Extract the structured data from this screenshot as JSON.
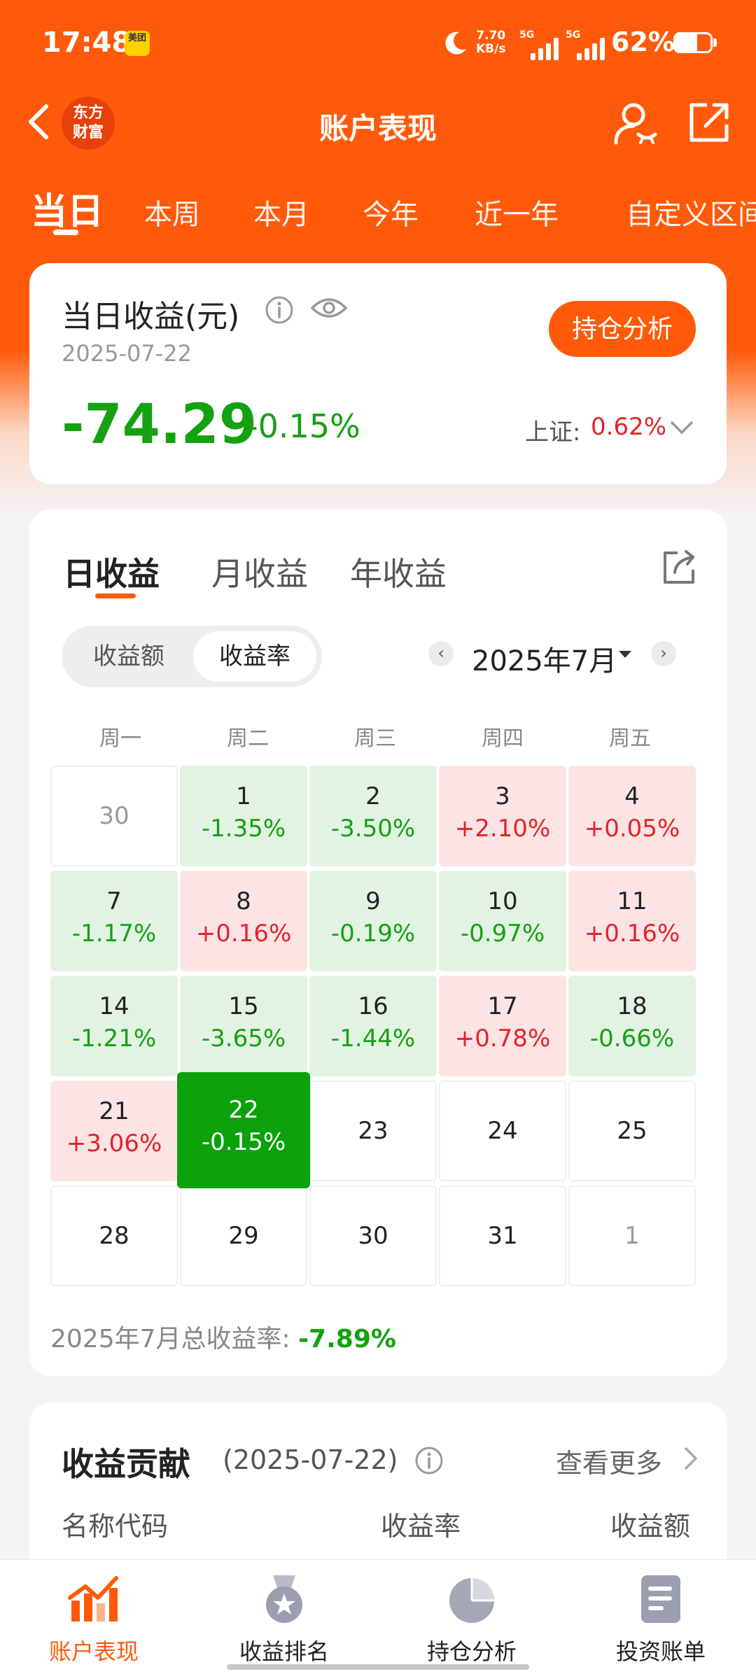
{
  "status": {
    "time": "17:48",
    "app_badge": "美团",
    "net_speed_value": "7.70",
    "net_speed_unit": "KB/s",
    "sim1_label": "5G",
    "sim2_label": "5G",
    "battery_percent": "62%",
    "battery_level": 0.62
  },
  "nav": {
    "logo_line1": "东方",
    "logo_line2": "财富",
    "title": "账户表现"
  },
  "period_tabs": [
    {
      "label": "当日",
      "active": true
    },
    {
      "label": "本周"
    },
    {
      "label": "本月"
    },
    {
      "label": "今年"
    },
    {
      "label": "近一年"
    },
    {
      "label": "自定义区间"
    }
  ],
  "summary": {
    "title": "当日收益(元)",
    "date": "2025-07-22",
    "amount": "-74.29",
    "rate": "-0.15%",
    "holdings_button": "持仓分析",
    "index_label": "上证:",
    "index_value": "0.62%"
  },
  "calendar": {
    "view_tabs": [
      {
        "label": "日收益",
        "active": true
      },
      {
        "label": "月收益"
      },
      {
        "label": "年收益"
      }
    ],
    "toggle": [
      {
        "label": "收益额"
      },
      {
        "label": "收益率",
        "active": true
      }
    ],
    "month": "2025年7月",
    "weekdays": [
      "周一",
      "周二",
      "周三",
      "周四",
      "周五"
    ],
    "days": [
      {
        "day": "30",
        "rate": "",
        "state": "other"
      },
      {
        "day": "1",
        "rate": "-1.35%",
        "state": "down"
      },
      {
        "day": "2",
        "rate": "-3.50%",
        "state": "down"
      },
      {
        "day": "3",
        "rate": "+2.10%",
        "state": "up"
      },
      {
        "day": "4",
        "rate": "+0.05%",
        "state": "up"
      },
      {
        "day": "7",
        "rate": "-1.17%",
        "state": "down"
      },
      {
        "day": "8",
        "rate": "+0.16%",
        "state": "up"
      },
      {
        "day": "9",
        "rate": "-0.19%",
        "state": "down"
      },
      {
        "day": "10",
        "rate": "-0.97%",
        "state": "down"
      },
      {
        "day": "11",
        "rate": "+0.16%",
        "state": "up"
      },
      {
        "day": "14",
        "rate": "-1.21%",
        "state": "down"
      },
      {
        "day": "15",
        "rate": "-3.65%",
        "state": "down"
      },
      {
        "day": "16",
        "rate": "-1.44%",
        "state": "down"
      },
      {
        "day": "17",
        "rate": "+0.78%",
        "state": "up"
      },
      {
        "day": "18",
        "rate": "-0.66%",
        "state": "down"
      },
      {
        "day": "21",
        "rate": "+3.06%",
        "state": "up"
      },
      {
        "day": "22",
        "rate": "-0.15%",
        "state": "selected"
      },
      {
        "day": "23",
        "rate": "",
        "state": "future"
      },
      {
        "day": "24",
        "rate": "",
        "state": "future"
      },
      {
        "day": "25",
        "rate": "",
        "state": "future"
      },
      {
        "day": "28",
        "rate": "",
        "state": "future"
      },
      {
        "day": "29",
        "rate": "",
        "state": "future"
      },
      {
        "day": "30",
        "rate": "",
        "state": "future"
      },
      {
        "day": "31",
        "rate": "",
        "state": "future"
      },
      {
        "day": "1",
        "rate": "",
        "state": "other"
      }
    ],
    "total_label": "2025年7月总收益率:",
    "total_value": "-7.89%"
  },
  "contribution": {
    "title": "收益贡献",
    "date": "(2025-07-22)",
    "see_more": "查看更多",
    "col_name": "名称代码",
    "col_rate": "收益率",
    "col_amount": "收益额"
  },
  "bottom_nav": [
    {
      "label": "账户表现",
      "icon": "chart-trend-icon",
      "active": true
    },
    {
      "label": "收益排名",
      "icon": "medal-icon"
    },
    {
      "label": "持仓分析",
      "icon": "pie-chart-icon"
    },
    {
      "label": "投资账单",
      "icon": "bill-icon"
    }
  ],
  "colors": {
    "brand": "#ff5a0a",
    "up": "#e2232a",
    "down": "#15a112"
  }
}
